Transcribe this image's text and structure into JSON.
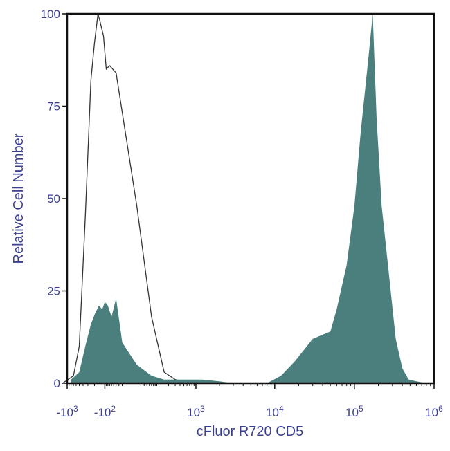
{
  "chart_data": {
    "type": "area",
    "title": "",
    "xlabel": "cFluor R720 CD5",
    "ylabel": "Relative Cell Number",
    "x_scale": "biexponential",
    "ylim": [
      0,
      100
    ],
    "y_ticks": [
      {
        "value": 0,
        "label": "0"
      },
      {
        "value": 25,
        "label": "25"
      },
      {
        "value": 50,
        "label": "50"
      },
      {
        "value": 75,
        "label": "75"
      },
      {
        "value": 100,
        "label": "100"
      }
    ],
    "x_ticks": [
      {
        "value": -1000,
        "base": "-10",
        "exp": "3"
      },
      {
        "value": -100,
        "base": "-10",
        "exp": "2"
      },
      {
        "value": 1000,
        "base": "10",
        "exp": "3"
      },
      {
        "value": 10000,
        "base": "10",
        "exp": "4"
      },
      {
        "value": 100000,
        "base": "10",
        "exp": "5"
      },
      {
        "value": 1000000,
        "base": "10",
        "exp": "6"
      }
    ],
    "grid": false,
    "legend": "none",
    "colors": {
      "axis_text": "#3b3f8f",
      "stained_fill": "#4a7f7d",
      "control_line": "#333333",
      "frame": "#111111"
    },
    "series": [
      {
        "style": "outline",
        "x": [
          -1300,
          -700,
          -500,
          -350,
          -250,
          -200,
          -160,
          -140,
          -110,
          -90,
          -70,
          -40,
          10,
          60,
          150,
          300,
          500,
          700,
          1000
        ],
        "y": [
          0,
          2,
          10,
          45,
          82,
          92,
          100,
          98,
          94,
          85,
          86,
          84,
          48,
          18,
          3,
          1,
          0.5,
          0,
          0
        ]
      },
      {
        "style": "filled",
        "x": [
          -800,
          -500,
          -350,
          -250,
          -190,
          -150,
          -120,
          -100,
          -80,
          -60,
          -40,
          -20,
          10,
          60,
          150,
          500,
          1200,
          2000,
          3000,
          8000,
          12000,
          18000,
          30000,
          50000,
          60000,
          80000,
          100000,
          120000,
          150000,
          170000,
          190000,
          220000,
          270000,
          330000,
          400000,
          480000,
          600000,
          800000
        ],
        "y": [
          1,
          3,
          10,
          16,
          19,
          21,
          20,
          22,
          21,
          18,
          23,
          11,
          5,
          2,
          1,
          1,
          1,
          0.5,
          0,
          0,
          2,
          6,
          12,
          14,
          20,
          32,
          48,
          68,
          88,
          100,
          72,
          48,
          30,
          12,
          4,
          1,
          0.5,
          0
        ]
      }
    ]
  }
}
